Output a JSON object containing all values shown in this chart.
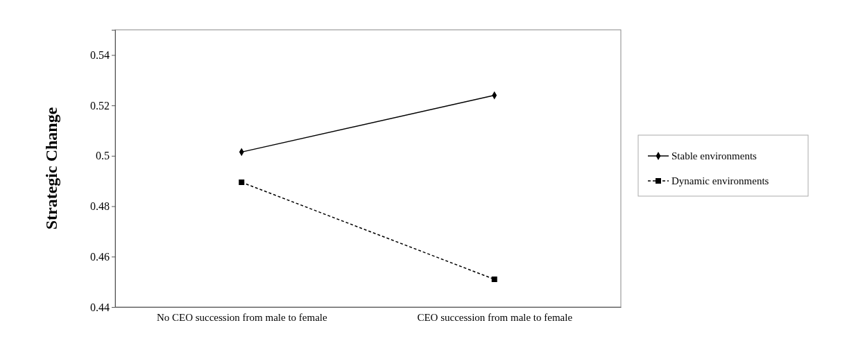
{
  "chart_data": {
    "type": "line",
    "ylabel": "Strategic Change",
    "categories": [
      "No CEO succession from male to female",
      "CEO succession from male to female"
    ],
    "series": [
      {
        "name": "Stable environments",
        "color": "#000000",
        "values": [
          0.5015,
          0.524
        ],
        "marker": "diamond",
        "line_style": "solid"
      },
      {
        "name": "Dynamic environments",
        "color": "#000000",
        "values": [
          0.4895,
          0.451
        ],
        "marker": "square",
        "line_style": "dashed"
      }
    ],
    "ylim": [
      0.44,
      0.55
    ],
    "yticks": [
      0.44,
      0.46,
      0.48,
      {
        "value": 0.5,
        "label": "0.5"
      },
      0.52,
      0.54
    ],
    "grid": false,
    "legend": "right"
  }
}
